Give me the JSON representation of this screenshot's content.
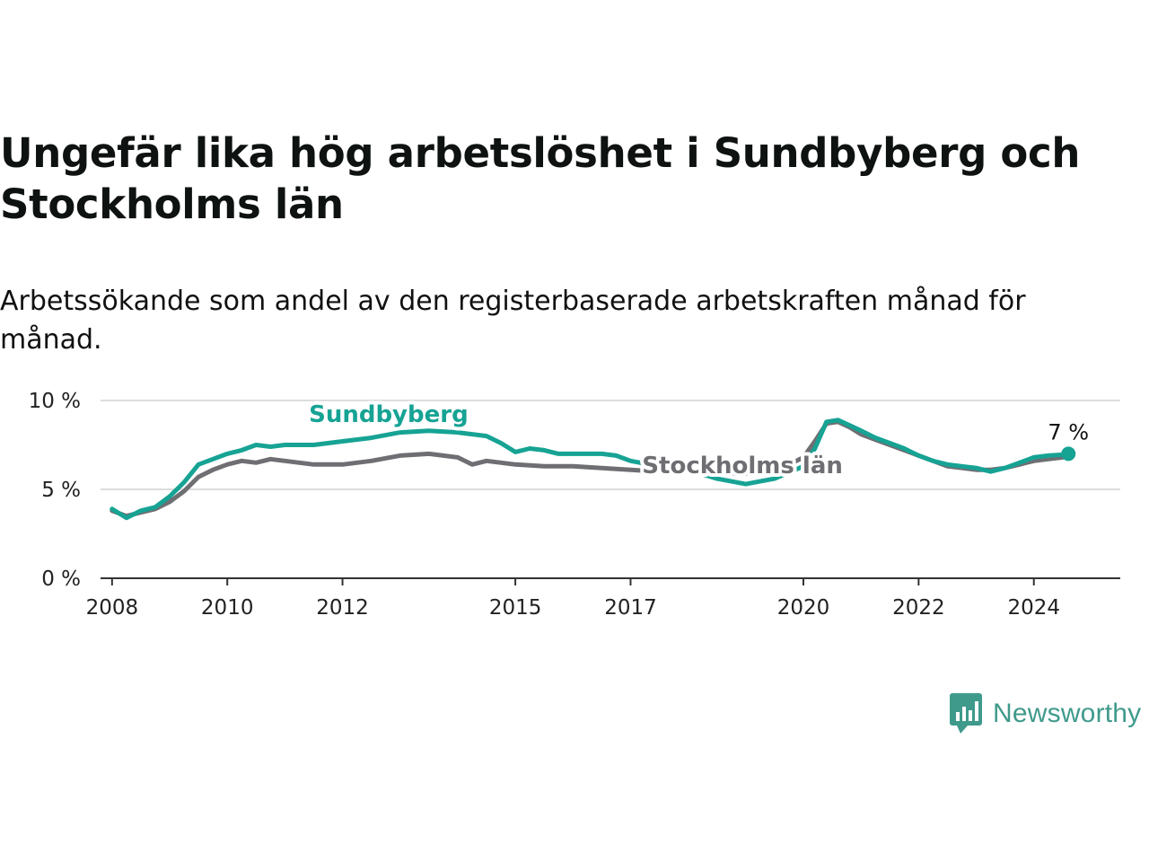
{
  "header": {
    "title": "Ungefär lika hög arbetslöshet i Sundbyberg och Stockholms län",
    "subtitle": "Arbetssökande som andel av den registerbaserade arbetskraften månad för månad."
  },
  "footer": {
    "brand": "Newsworthy"
  },
  "colors": {
    "sundbyberg": "#16a394",
    "stockholm": "#6e6e73",
    "grid": "#dddddd",
    "axis": "#333333"
  },
  "chart_data": {
    "type": "line",
    "title": "Ungefär lika hög arbetslöshet i Sundbyberg och Stockholms län",
    "subtitle": "Arbetssökande som andel av den registerbaserade arbetskraften månad för månad.",
    "xlabel": "",
    "ylabel": "",
    "ylim": [
      0,
      10
    ],
    "xlim": [
      2007.8,
      2025.5
    ],
    "yticks": [
      0,
      5,
      10
    ],
    "ytick_labels": [
      "0 %",
      "5 %",
      "10 %"
    ],
    "xticks": [
      2008,
      2010,
      2012,
      2015,
      2017,
      2020,
      2022,
      2024
    ],
    "xtick_labels": [
      "2008",
      "2010",
      "2012",
      "2015",
      "2017",
      "2020",
      "2022",
      "2024"
    ],
    "grid": true,
    "series": [
      {
        "name": "Stockholms län",
        "color": "#6e6e73",
        "x": [
          2008.0,
          2008.25,
          2008.5,
          2008.75,
          2009.0,
          2009.25,
          2009.5,
          2009.75,
          2010.0,
          2010.25,
          2010.5,
          2010.75,
          2011.0,
          2011.5,
          2012.0,
          2012.5,
          2013.0,
          2013.5,
          2014.0,
          2014.25,
          2014.5,
          2015.0,
          2015.5,
          2016.0,
          2016.5,
          2017.0,
          2017.5,
          2018.0,
          2018.5,
          2019.0,
          2019.5,
          2020.0,
          2020.2,
          2020.4,
          2020.6,
          2020.8,
          2021.0,
          2021.25,
          2021.5,
          2021.75,
          2022.0,
          2022.25,
          2022.5,
          2022.75,
          2023.0,
          2023.25,
          2023.5,
          2023.75,
          2024.0,
          2024.25,
          2024.5,
          2024.6
        ],
        "values": [
          3.8,
          3.5,
          3.7,
          3.9,
          4.3,
          4.9,
          5.7,
          6.1,
          6.4,
          6.6,
          6.5,
          6.7,
          6.6,
          6.4,
          6.4,
          6.6,
          6.9,
          7.0,
          6.8,
          6.4,
          6.6,
          6.4,
          6.3,
          6.3,
          6.2,
          6.1,
          6.0,
          6.0,
          5.9,
          5.9,
          6.0,
          6.8,
          7.7,
          8.7,
          8.8,
          8.5,
          8.1,
          7.8,
          7.5,
          7.2,
          6.9,
          6.6,
          6.3,
          6.2,
          6.1,
          6.1,
          6.2,
          6.4,
          6.6,
          6.7,
          6.8,
          6.9
        ]
      },
      {
        "name": "Sundbyberg",
        "color": "#16a394",
        "x": [
          2008.0,
          2008.25,
          2008.5,
          2008.75,
          2009.0,
          2009.25,
          2009.5,
          2009.75,
          2010.0,
          2010.25,
          2010.5,
          2010.75,
          2011.0,
          2011.5,
          2012.0,
          2012.5,
          2013.0,
          2013.5,
          2014.0,
          2014.5,
          2014.75,
          2015.0,
          2015.25,
          2015.5,
          2015.75,
          2016.0,
          2016.25,
          2016.5,
          2016.75,
          2017.0,
          2017.5,
          2018.0,
          2018.5,
          2019.0,
          2019.5,
          2020.0,
          2020.2,
          2020.4,
          2020.6,
          2020.8,
          2021.0,
          2021.25,
          2021.5,
          2021.75,
          2022.0,
          2022.25,
          2022.5,
          2022.75,
          2023.0,
          2023.25,
          2023.5,
          2023.75,
          2024.0,
          2024.25,
          2024.5,
          2024.6
        ],
        "values": [
          3.9,
          3.4,
          3.8,
          4.0,
          4.6,
          5.4,
          6.4,
          6.7,
          7.0,
          7.2,
          7.5,
          7.4,
          7.5,
          7.5,
          7.7,
          7.9,
          8.2,
          8.3,
          8.2,
          8.0,
          7.6,
          7.1,
          7.3,
          7.2,
          7.0,
          7.0,
          7.0,
          7.0,
          6.9,
          6.6,
          6.3,
          6.1,
          5.6,
          5.3,
          5.6,
          6.3,
          7.3,
          8.8,
          8.9,
          8.6,
          8.3,
          7.9,
          7.6,
          7.3,
          6.9,
          6.6,
          6.4,
          6.3,
          6.2,
          6.0,
          6.2,
          6.5,
          6.8,
          6.9,
          6.95,
          7.0
        ]
      }
    ],
    "annotations": [
      {
        "text": "Sundbyberg",
        "series": "Sundbyberg",
        "x": 2012.8,
        "y": 8.8
      },
      {
        "text": "Stockholms län",
        "series": "Stockholms län",
        "x": 2017.2,
        "y": 5.9
      },
      {
        "text": "7 %",
        "series": "Sundbyberg",
        "x": 2024.6,
        "y": 7.0
      }
    ]
  }
}
